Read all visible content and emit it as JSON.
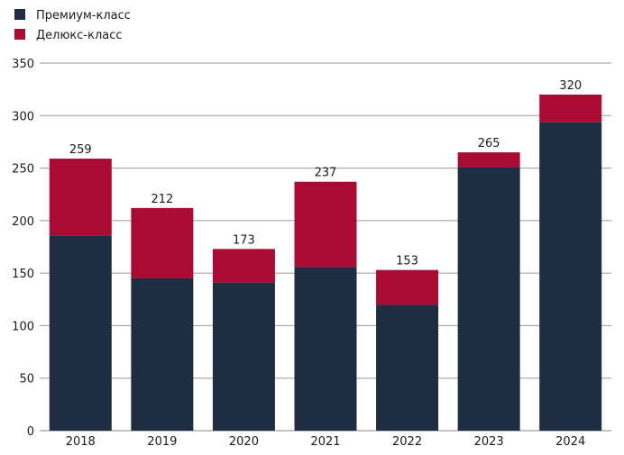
{
  "chart_data": {
    "type": "bar",
    "stacked": true,
    "title": "",
    "xlabel": "",
    "ylabel": "",
    "categories": [
      "2018",
      "2019",
      "2020",
      "2021",
      "2022",
      "2023",
      "2024"
    ],
    "series": [
      {
        "name": "Премиум-класс",
        "color": "#1f2d43",
        "values": [
          186,
          145,
          141,
          156,
          120,
          251,
          294
        ]
      },
      {
        "name": "Делюкс-класс",
        "color": "#ab0b33",
        "values": [
          73,
          67,
          32,
          81,
          33,
          14,
          26
        ]
      }
    ],
    "totals": [
      "259",
      "212",
      "173",
      "237",
      "153",
      "265",
      "320"
    ],
    "ylim": [
      0,
      350
    ],
    "yticks": [
      "0",
      "50",
      "100",
      "150",
      "200",
      "250",
      "300",
      "350"
    ],
    "grid": true,
    "legend_position": "top-left"
  }
}
